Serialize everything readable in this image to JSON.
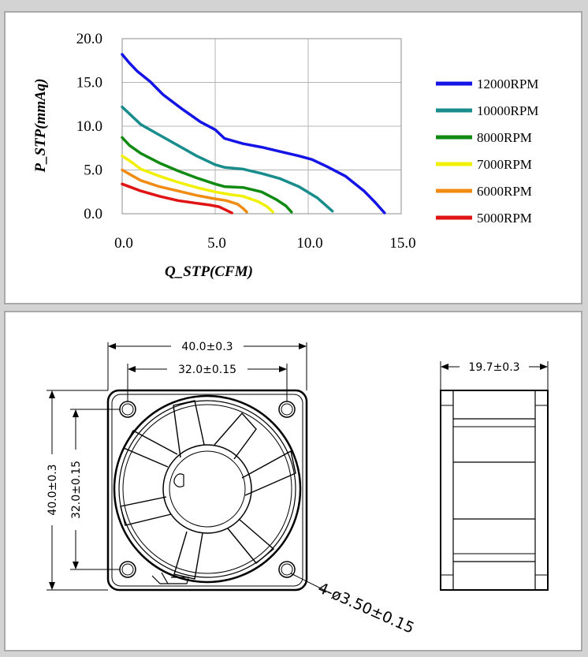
{
  "chart_data": {
    "type": "line",
    "title": "",
    "xlabel": "Q_STP(CFM)",
    "ylabel": "P_STP(mmAq)",
    "xlim": [
      0,
      15
    ],
    "ylim": [
      0,
      20
    ],
    "x_ticks": [
      "0.0",
      "5.0",
      "10.0",
      "15.0"
    ],
    "y_ticks": [
      "0.0",
      "5.0",
      "10.0",
      "15.0",
      "20.0"
    ],
    "grid": true,
    "legend_position": "right",
    "series": [
      {
        "name": "12000RPM",
        "color": "#1414e6",
        "points": [
          [
            0,
            18.2
          ],
          [
            0.4,
            17.2
          ],
          [
            0.8,
            16.3
          ],
          [
            1.5,
            15.1
          ],
          [
            2.2,
            13.6
          ],
          [
            3.2,
            12.0
          ],
          [
            4.2,
            10.5
          ],
          [
            5.0,
            9.6
          ],
          [
            5.5,
            8.6
          ],
          [
            6.5,
            8.0
          ],
          [
            7.5,
            7.6
          ],
          [
            8.5,
            7.1
          ],
          [
            9.5,
            6.6
          ],
          [
            10.2,
            6.2
          ],
          [
            11.0,
            5.4
          ],
          [
            12.0,
            4.3
          ],
          [
            13.0,
            2.6
          ],
          [
            13.6,
            1.3
          ],
          [
            14.1,
            0.1
          ]
        ]
      },
      {
        "name": "10000RPM",
        "color": "#198c8c",
        "points": [
          [
            0,
            12.2
          ],
          [
            0.5,
            11.2
          ],
          [
            1.0,
            10.2
          ],
          [
            2.0,
            9.0
          ],
          [
            3.0,
            7.8
          ],
          [
            4.0,
            6.6
          ],
          [
            5.0,
            5.6
          ],
          [
            5.5,
            5.3
          ],
          [
            6.5,
            5.1
          ],
          [
            7.5,
            4.6
          ],
          [
            8.5,
            4.0
          ],
          [
            9.5,
            3.1
          ],
          [
            10.5,
            1.8
          ],
          [
            11.3,
            0.3
          ]
        ]
      },
      {
        "name": "8000RPM",
        "color": "#108a10",
        "points": [
          [
            0,
            8.7
          ],
          [
            0.4,
            7.8
          ],
          [
            1.0,
            6.9
          ],
          [
            2.0,
            5.8
          ],
          [
            3.0,
            4.9
          ],
          [
            4.0,
            4.1
          ],
          [
            5.0,
            3.4
          ],
          [
            5.5,
            3.1
          ],
          [
            6.5,
            3.0
          ],
          [
            7.5,
            2.5
          ],
          [
            8.3,
            1.6
          ],
          [
            8.8,
            0.9
          ],
          [
            9.1,
            0.2
          ]
        ]
      },
      {
        "name": "7000RPM",
        "color": "#f0f000",
        "points": [
          [
            0,
            6.6
          ],
          [
            0.5,
            5.9
          ],
          [
            1.0,
            5.1
          ],
          [
            2.0,
            4.3
          ],
          [
            3.0,
            3.6
          ],
          [
            4.0,
            3.0
          ],
          [
            5.0,
            2.5
          ],
          [
            5.8,
            2.2
          ],
          [
            6.5,
            2.0
          ],
          [
            7.3,
            1.4
          ],
          [
            7.8,
            0.8
          ],
          [
            8.1,
            0.2
          ]
        ]
      },
      {
        "name": "6000RPM",
        "color": "#f08c14",
        "points": [
          [
            0,
            5.0
          ],
          [
            0.5,
            4.4
          ],
          [
            1.0,
            3.8
          ],
          [
            2.0,
            3.1
          ],
          [
            3.0,
            2.6
          ],
          [
            4.0,
            2.1
          ],
          [
            5.0,
            1.7
          ],
          [
            5.6,
            1.5
          ],
          [
            6.2,
            1.1
          ],
          [
            6.5,
            0.6
          ],
          [
            6.7,
            0.2
          ]
        ]
      },
      {
        "name": "5000RPM",
        "color": "#e01414",
        "points": [
          [
            0,
            3.4
          ],
          [
            0.5,
            3.0
          ],
          [
            1.0,
            2.6
          ],
          [
            2.0,
            2.0
          ],
          [
            3.0,
            1.5
          ],
          [
            4.0,
            1.2
          ],
          [
            4.7,
            1.0
          ],
          [
            5.2,
            0.8
          ],
          [
            5.6,
            0.4
          ],
          [
            5.9,
            0.1
          ]
        ]
      }
    ]
  },
  "dimensions": {
    "overall_width": "40.0±0.3",
    "hole_spacing_horizontal": "32.0±0.15",
    "overall_height": "40.0±0.3",
    "hole_spacing_vertical": "32.0±0.15",
    "depth": "19.7±0.3",
    "mounting_holes": "4-ø3.50±0.15"
  }
}
